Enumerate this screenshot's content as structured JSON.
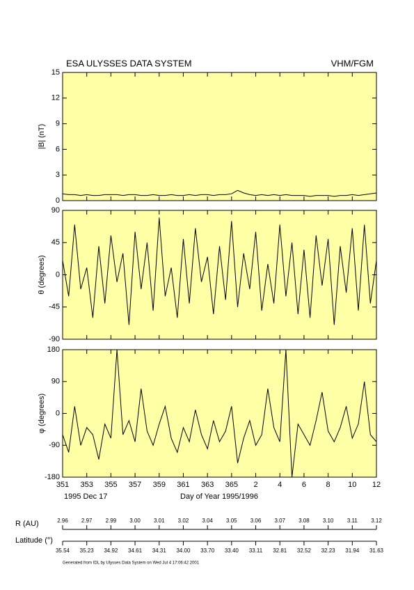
{
  "header": {
    "title": "ESA ULYSSES DATA SYSTEM",
    "instrument": "VHM/FGM"
  },
  "chart_data": [
    {
      "type": "line",
      "y_label": "|B| (nT)",
      "color": "#000000",
      "xlim": [
        351,
        377
      ],
      "ylim": [
        0,
        15
      ],
      "yticks": [
        0,
        3,
        6,
        9,
        12,
        15
      ],
      "x": [
        351,
        351.5,
        352,
        352.5,
        353,
        353.5,
        354,
        354.5,
        355,
        355.5,
        356,
        356.5,
        357,
        357.5,
        358,
        358.5,
        359,
        359.5,
        360,
        360.5,
        361,
        361.5,
        362,
        362.5,
        363,
        363.5,
        364,
        364.5,
        365,
        365.5,
        366,
        366.5,
        367,
        367.5,
        368,
        368.5,
        369,
        369.5,
        370,
        370.5,
        371,
        371.5,
        372,
        372.5,
        373,
        373.5,
        374,
        374.5,
        375,
        375.5,
        376,
        376.5,
        377
      ],
      "values": [
        0.8,
        0.7,
        0.7,
        0.6,
        0.7,
        0.6,
        0.6,
        0.7,
        0.7,
        0.7,
        0.6,
        0.7,
        0.7,
        0.6,
        0.6,
        0.7,
        0.6,
        0.6,
        0.7,
        0.6,
        0.6,
        0.7,
        0.6,
        0.7,
        0.7,
        0.6,
        0.7,
        0.7,
        0.8,
        1.2,
        0.9,
        0.7,
        0.6,
        0.7,
        0.6,
        0.7,
        0.6,
        0.7,
        0.6,
        0.6,
        0.6,
        0.5,
        0.6,
        0.6,
        0.6,
        0.5,
        0.6,
        0.6,
        0.7,
        0.6,
        0.7,
        0.8,
        0.9
      ]
    },
    {
      "type": "line",
      "y_label": "θ (degrees)",
      "color": "#000000",
      "xlim": [
        351,
        377
      ],
      "ylim": [
        -90,
        90
      ],
      "yticks": [
        -90,
        -45,
        0,
        45,
        90
      ],
      "x": [
        351,
        351.5,
        352,
        352.5,
        353,
        353.5,
        354,
        354.5,
        355,
        355.5,
        356,
        356.5,
        357,
        357.5,
        358,
        358.5,
        359,
        359.5,
        360,
        360.5,
        361,
        361.5,
        362,
        362.5,
        363,
        363.5,
        364,
        364.5,
        365,
        365.5,
        366,
        366.5,
        367,
        367.5,
        368,
        368.5,
        369,
        369.5,
        370,
        370.5,
        371,
        371.5,
        372,
        372.5,
        373,
        373.5,
        374,
        374.5,
        375,
        375.5,
        376,
        376.5,
        377
      ],
      "values": [
        20,
        -30,
        70,
        -20,
        10,
        -60,
        40,
        -40,
        55,
        -10,
        30,
        -70,
        60,
        -20,
        45,
        -50,
        80,
        -30,
        10,
        -60,
        50,
        -40,
        65,
        -10,
        25,
        -55,
        40,
        -35,
        75,
        -45,
        30,
        -20,
        60,
        -50,
        15,
        -40,
        70,
        -30,
        45,
        -55,
        35,
        -60,
        55,
        -15,
        50,
        -70,
        40,
        -25,
        65,
        -50,
        70,
        -40,
        20
      ]
    },
    {
      "type": "line",
      "y_label": "φ (degrees)",
      "color": "#000000",
      "x_label": "Day of Year 1995/1996",
      "start_date": "1995 Dec 17",
      "xlim": [
        351,
        377
      ],
      "xticks": [
        351,
        353,
        355,
        357,
        359,
        361,
        363,
        365,
        {
          "value": 367,
          "label": "2"
        },
        {
          "value": 369,
          "label": "4"
        },
        {
          "value": 371,
          "label": "6"
        },
        {
          "value": 373,
          "label": "8"
        },
        {
          "value": 375,
          "label": "10"
        },
        {
          "value": 377,
          "label": "12"
        }
      ],
      "ylim": [
        -180,
        180
      ],
      "yticks": [
        -180,
        -90,
        0,
        90,
        180
      ],
      "x": [
        351,
        351.5,
        352,
        352.5,
        353,
        353.5,
        354,
        354.5,
        355,
        355.5,
        356,
        356.5,
        357,
        357.5,
        358,
        358.5,
        359,
        359.5,
        360,
        360.5,
        361,
        361.5,
        362,
        362.5,
        363,
        363.5,
        364,
        364.5,
        365,
        365.5,
        366,
        366.5,
        367,
        367.5,
        368,
        368.5,
        369,
        369.5,
        370,
        370.5,
        371,
        371.5,
        372,
        372.5,
        373,
        373.5,
        374,
        374.5,
        375,
        375.5,
        376,
        376.5,
        377
      ],
      "values": [
        -60,
        -110,
        20,
        -90,
        -40,
        -60,
        -130,
        -30,
        -70,
        180,
        -60,
        -20,
        -80,
        70,
        -50,
        -90,
        -30,
        20,
        -70,
        -110,
        -40,
        -80,
        10,
        -60,
        -100,
        -20,
        -80,
        -50,
        20,
        -140,
        -70,
        -20,
        -90,
        -60,
        70,
        -40,
        -80,
        180,
        -180,
        -30,
        -60,
        -90,
        -20,
        60,
        -50,
        -80,
        -40,
        20,
        -70,
        -30,
        90,
        -60,
        -80
      ]
    }
  ],
  "orbit": {
    "r_label": "R (AU)",
    "r_values": [
      "2.96",
      "2.97",
      "2.99",
      "3.00",
      "3.01",
      "3.02",
      "3.04",
      "3.05",
      "3.06",
      "3.07",
      "3.08",
      "3.10",
      "3.11",
      "3.12"
    ],
    "lat_label": "Latitude (°)",
    "lat_values": [
      "35.54",
      "35.23",
      "34.92",
      "34.61",
      "34.31",
      "34.00",
      "33.70",
      "33.40",
      "33.11",
      "32.81",
      "32.52",
      "32.23",
      "31.94",
      "31.63"
    ]
  },
  "footer": "Generated from IDL by Ulysses Data System on Wed Jul 4 17:06:42 2001"
}
